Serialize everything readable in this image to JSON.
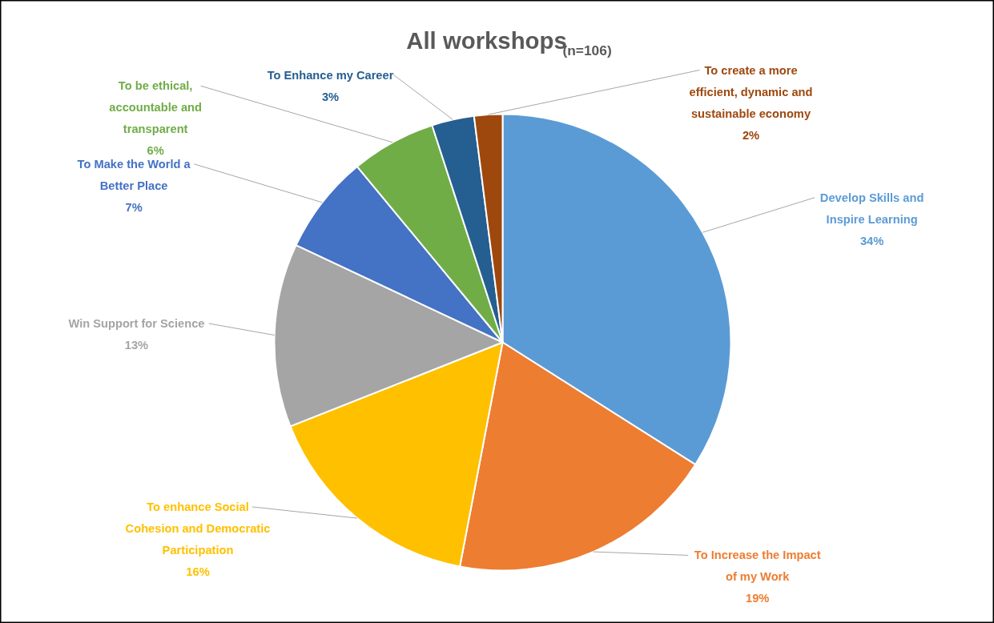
{
  "chart_data": {
    "type": "pie",
    "title": "All workshops",
    "subtitle": "(n=106)",
    "categories": [
      "Develop Skills and Inspire Learning",
      "To Increase the Impact of my Work",
      "To enhance Social Cohesion and Democratic Participation",
      "Win Support for Science",
      "To Make the World a Better Place",
      "To be ethical, accountable and transparent",
      "To Enhance my Career",
      "To create a more efficient, dynamic and sustainable economy"
    ],
    "values": [
      34,
      19,
      16,
      13,
      7,
      6,
      3,
      2
    ],
    "colors": [
      "#5b9bd5",
      "#ed7d31",
      "#ffc000",
      "#a5a5a5",
      "#4472c4",
      "#70ad47",
      "#255e91",
      "#9e480e"
    ],
    "value_labels": [
      "34%",
      "19%",
      "16%",
      "13%",
      "7%",
      "6%",
      "3%",
      "2%"
    ],
    "legend": false
  }
}
